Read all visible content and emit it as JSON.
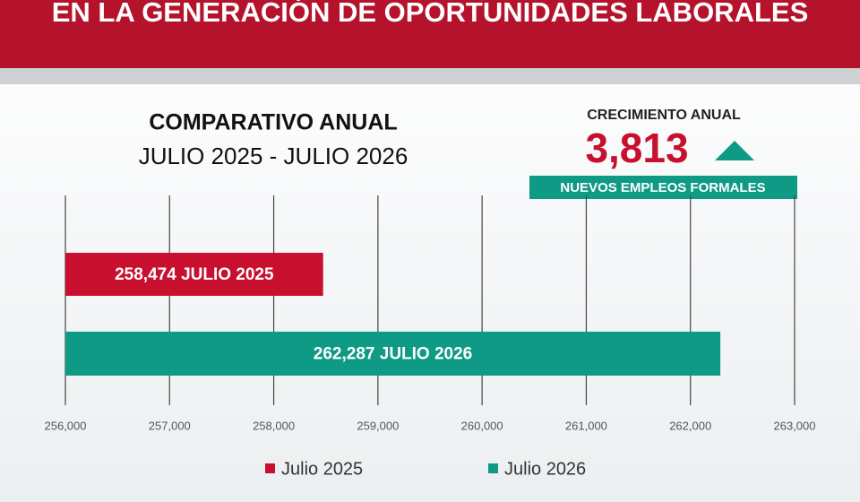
{
  "chart_data": {
    "type": "bar",
    "orientation": "horizontal",
    "header": "EN LA GENERACIÓN DE OPORTUNIDADES LABORALES",
    "title": "COMPARATIVO ANUAL",
    "subtitle": "JULIO 2025 - JULIO 2026",
    "annotation": {
      "label": "CRECIMIENTO ANUAL",
      "value": "3,813",
      "note": "NUEVOS EMPLEOS FORMALES"
    },
    "series": [
      {
        "name": "Julio 2025",
        "color": "#c8102e",
        "values": [
          258474
        ],
        "value_labels": [
          "258,474 JULIO 2025"
        ]
      },
      {
        "name": "Julio 2026",
        "color": "#0e9a85",
        "values": [
          262287
        ],
        "value_labels": [
          "262,287 JULIO 2026"
        ]
      }
    ],
    "xlim": [
      256000,
      263000
    ],
    "xticks": [
      {
        "value": 256000,
        "label": "256,000"
      },
      {
        "value": 257000,
        "label": "257,000"
      },
      {
        "value": 258000,
        "label": "258,000"
      },
      {
        "value": 259000,
        "label": "259,000"
      },
      {
        "value": 260000,
        "label": "260,000"
      },
      {
        "value": 261000,
        "label": "261,000"
      },
      {
        "value": 262000,
        "label": "262,000"
      },
      {
        "value": 263000,
        "label": "263,000"
      }
    ],
    "grid": true
  }
}
